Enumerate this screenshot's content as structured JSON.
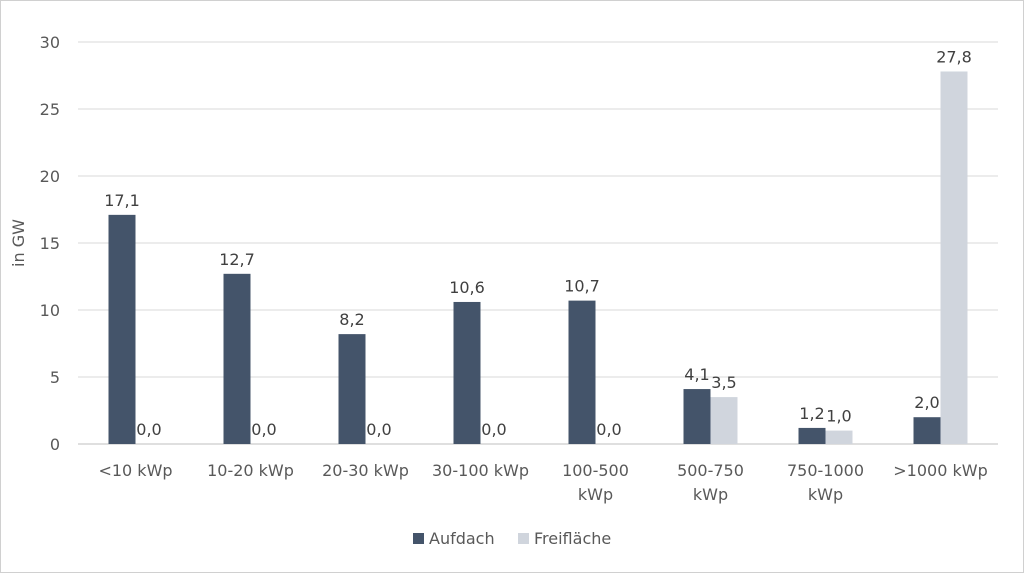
{
  "chart_data": {
    "type": "bar",
    "ylabel": "in GW",
    "ylim": [
      0,
      30
    ],
    "yticks": [
      "0",
      "5",
      "10",
      "15",
      "20",
      "25",
      "30"
    ],
    "grid": true,
    "legend_position": "bottom",
    "categories": [
      [
        "<10 kWp"
      ],
      [
        "10-20 kWp"
      ],
      [
        "20-30 kWp"
      ],
      [
        "30-100 kWp"
      ],
      [
        "100-500",
        "kWp"
      ],
      [
        "500-750",
        "kWp"
      ],
      [
        "750-1000",
        "kWp"
      ],
      [
        ">1000 kWp"
      ]
    ],
    "series": [
      {
        "name": "Aufdach",
        "color": "#44546a",
        "values": [
          17.1,
          12.7,
          8.2,
          10.6,
          10.7,
          4.1,
          1.2,
          2.0
        ],
        "labels": [
          "17,1",
          "12,7",
          "8,2",
          "10,6",
          "10,7",
          "4,1",
          "1,2",
          "2,0"
        ]
      },
      {
        "name": "Freifläche",
        "color": "#d0d5dd",
        "values": [
          0.0,
          0.0,
          0.0,
          0.0,
          0.0,
          3.5,
          1.0,
          27.8
        ],
        "labels": [
          "0,0",
          "0,0",
          "0,0",
          "0,0",
          "0,0",
          "3,5",
          "1,0",
          "27,8"
        ]
      }
    ]
  }
}
